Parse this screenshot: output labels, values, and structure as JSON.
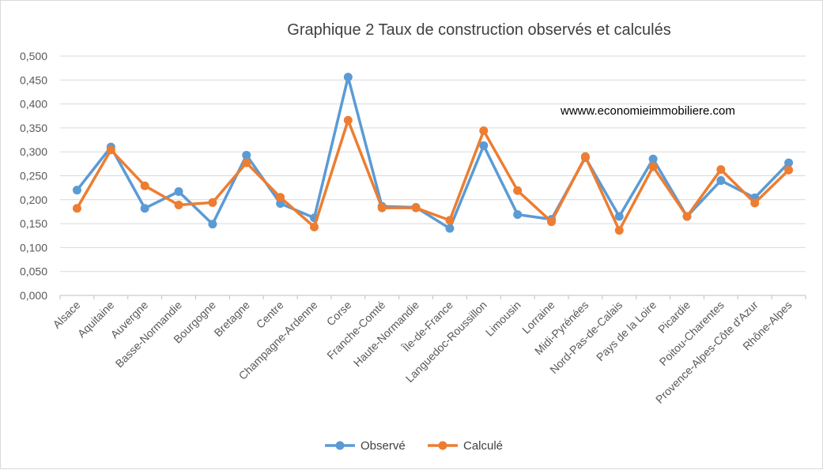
{
  "chart_data": {
    "type": "line",
    "title": "Graphique 2 Taux de construction observés et calculés",
    "xlabel": "",
    "ylabel": "",
    "ylim": [
      0,
      0.5
    ],
    "ytick_step": 0.05,
    "ytick_labels": [
      "0,000",
      "0,050",
      "0,100",
      "0,150",
      "0,200",
      "0,250",
      "0,300",
      "0,350",
      "0,400",
      "0,450",
      "0,500"
    ],
    "grid": "horizontal",
    "legend_position": "bottom",
    "annotation": "wwww.economieimmobiliere.com",
    "categories": [
      "Alsace",
      "Aquitaine",
      "Auvergne",
      "Basse-Normandie",
      "Bourgogne",
      "Bretagne",
      "Centre",
      "Champagne-Ardenne",
      "Corse",
      "Franche-Comté",
      "Haute-Normandie",
      "Île-de-France",
      "Languedoc-Roussillon",
      "Limousin",
      "Lorraine",
      "Midi-Pyrénées",
      "Nord-Pas-de-Calais",
      "Pays de la Loire",
      "Picardie",
      "Poitou-Charentes",
      "Provence-Alpes-Côte d'Azur",
      "Rhône-Alpes"
    ],
    "series": [
      {
        "name": "Observé",
        "color": "#5b9bd5",
        "values": [
          0.22,
          0.31,
          0.182,
          0.217,
          0.149,
          0.293,
          0.192,
          0.162,
          0.456,
          0.186,
          0.184,
          0.14,
          0.313,
          0.169,
          0.159,
          0.288,
          0.165,
          0.285,
          0.165,
          0.24,
          0.204,
          0.277
        ]
      },
      {
        "name": "Calculé",
        "color": "#ed7d31",
        "values": [
          0.182,
          0.304,
          0.229,
          0.189,
          0.194,
          0.277,
          0.205,
          0.143,
          0.366,
          0.183,
          0.183,
          0.157,
          0.344,
          0.219,
          0.154,
          0.29,
          0.136,
          0.269,
          0.165,
          0.263,
          0.193,
          0.262
        ]
      }
    ]
  }
}
